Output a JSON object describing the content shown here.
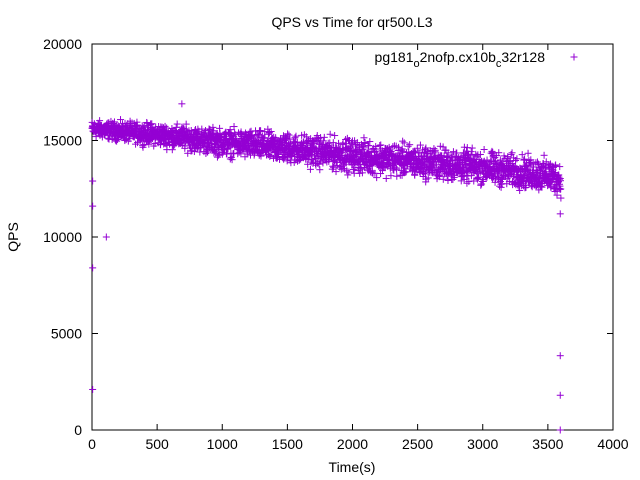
{
  "chart_data": {
    "type": "scatter",
    "title": "QPS vs Time for qr500.L3",
    "xlabel": "Time(s)",
    "ylabel": "QPS",
    "xlim": [
      0,
      4000
    ],
    "ylim": [
      0,
      20000
    ],
    "xticks": [
      0,
      500,
      1000,
      1500,
      2000,
      2500,
      3000,
      3500,
      4000
    ],
    "yticks": [
      0,
      5000,
      10000,
      15000,
      20000
    ],
    "legend_position": "top-right",
    "marker": "+",
    "series": [
      {
        "name_main": "pg181",
        "name_sub1": "o",
        "name_mid": "2nofp.cx10b",
        "name_sub2": "c",
        "name_end": "32r128",
        "color": "#9400d3",
        "trend": {
          "x": [
            0,
            500,
            1000,
            1500,
            2000,
            2500,
            3000,
            3500,
            3600
          ],
          "center": [
            15600,
            15300,
            14900,
            14600,
            14200,
            13900,
            13600,
            13200,
            13000
          ],
          "spread": [
            600,
            800,
            1000,
            1100,
            1200,
            1200,
            1200,
            1200,
            1200
          ]
        },
        "outliers": [
          {
            "x": 5,
            "y": 2100
          },
          {
            "x": 5,
            "y": 8400
          },
          {
            "x": 5,
            "y": 11600
          },
          {
            "x": 5,
            "y": 12900
          },
          {
            "x": 110,
            "y": 10000
          },
          {
            "x": 690,
            "y": 16900
          },
          {
            "x": 3595,
            "y": 0
          },
          {
            "x": 3595,
            "y": 1800
          },
          {
            "x": 3595,
            "y": 3850
          },
          {
            "x": 3595,
            "y": 11200
          }
        ]
      }
    ]
  }
}
